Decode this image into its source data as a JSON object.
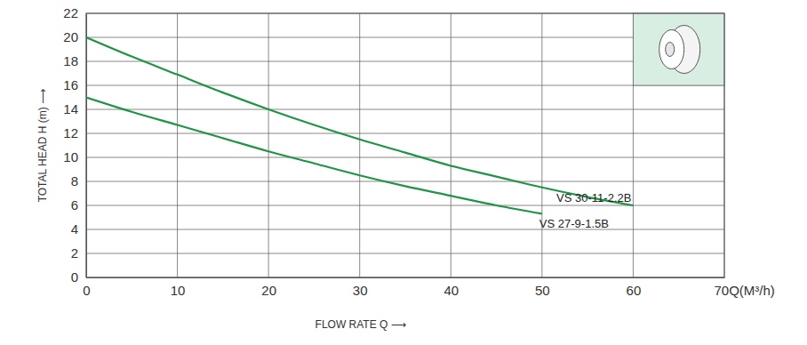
{
  "chart_data": {
    "type": "line",
    "x_label": "FLOW RATE Q ⟶",
    "y_label": "TOTAL HEAD H (m) ⟶",
    "x": [
      0,
      5,
      10,
      15,
      20,
      25,
      30,
      35,
      40,
      45,
      50,
      55,
      60
    ],
    "series": [
      {
        "name": "VS 30-11-2.2B",
        "color": "#1f9446",
        "values": [
          20,
          18.4,
          16.9,
          15.4,
          14.0,
          12.7,
          11.5,
          10.4,
          9.3,
          8.4,
          7.5,
          6.7,
          6.0
        ]
      },
      {
        "name": "VS 27-9-1.5B",
        "color": "#1f9446",
        "values": [
          15,
          13.8,
          12.7,
          11.6,
          10.5,
          9.5,
          8.5,
          7.6,
          6.8,
          6.0,
          5.3,
          null,
          null
        ]
      }
    ],
    "xlim": [
      0,
      70
    ],
    "xticks": [
      0,
      10,
      20,
      30,
      40,
      50,
      60,
      {
        "value": 70,
        "label": "70Q(M³/h)"
      }
    ],
    "ylim": [
      0,
      22
    ],
    "yticks": [
      0,
      2,
      4,
      6,
      8,
      10,
      12,
      14,
      16,
      18,
      20,
      22
    ],
    "grid": true
  }
}
